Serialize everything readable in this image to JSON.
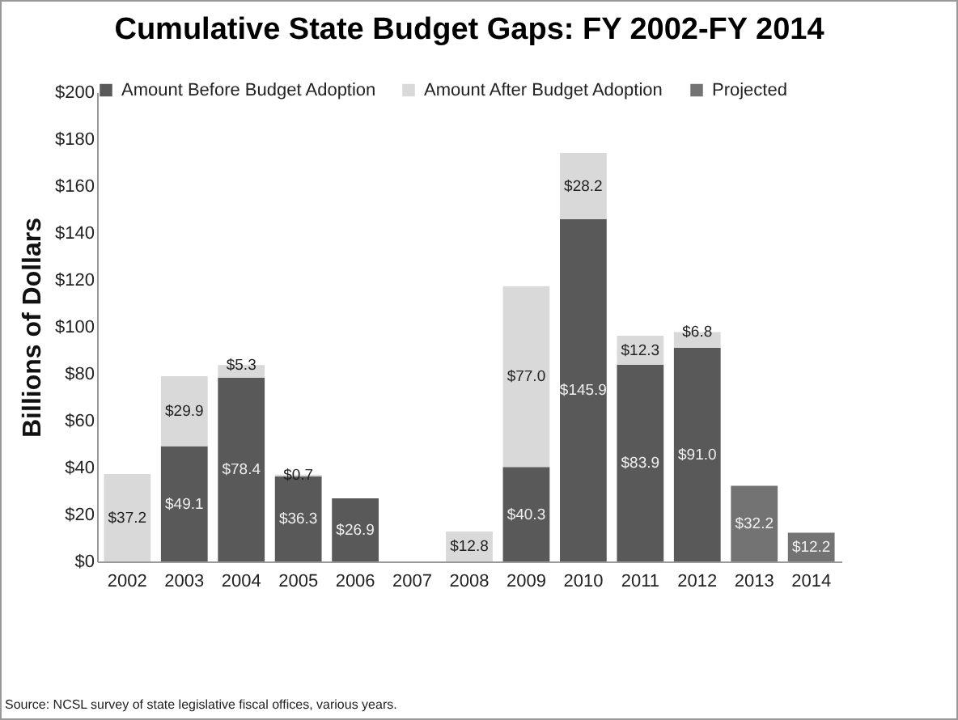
{
  "chart_data": {
    "type": "bar",
    "title": "Cumulative State Budget Gaps: FY 2002-FY 2014",
    "ylabel": "Billions of Dollars",
    "categories": [
      "2002",
      "2003",
      "2004",
      "2005",
      "2006",
      "2007",
      "2008",
      "2009",
      "2010",
      "2011",
      "2012",
      "2013",
      "2014"
    ],
    "stacked": true,
    "series": [
      {
        "name": "Amount Before Budget Adoption",
        "color": "#595959",
        "values": [
          null,
          49.1,
          78.4,
          36.3,
          26.9,
          null,
          null,
          40.3,
          145.9,
          83.9,
          91.0,
          null,
          null
        ],
        "value_labels": [
          null,
          "$49.1",
          "$78.4",
          "$36.3",
          "$26.9",
          null,
          null,
          "$40.3",
          "$145.9",
          "$83.9",
          "$91.0",
          null,
          null
        ]
      },
      {
        "name": "Amount After Budget Adoption",
        "color": "#d9d9d9",
        "values": [
          37.2,
          29.9,
          5.3,
          0.7,
          null,
          null,
          12.8,
          77.0,
          28.2,
          12.3,
          6.8,
          null,
          null
        ],
        "value_labels": [
          "$37.2",
          "$29.9",
          "$5.3",
          "$0.7",
          null,
          null,
          "$12.8",
          "$77.0",
          "$28.2",
          "$12.3",
          "$6.8",
          null,
          null
        ]
      },
      {
        "name": "Projected",
        "color": "#737373",
        "values": [
          null,
          null,
          null,
          null,
          null,
          null,
          null,
          null,
          null,
          null,
          null,
          32.2,
          12.2
        ],
        "value_labels": [
          null,
          null,
          null,
          null,
          null,
          null,
          null,
          null,
          null,
          null,
          null,
          "$32.2",
          "$12.2"
        ]
      }
    ],
    "ylim": [
      0,
      200
    ],
    "yticks": [
      {
        "value": 0,
        "label": "$0"
      },
      {
        "value": 20,
        "label": "$20"
      },
      {
        "value": 40,
        "label": "$40"
      },
      {
        "value": 60,
        "label": "$60"
      },
      {
        "value": 80,
        "label": "$80"
      },
      {
        "value": 100,
        "label": "$100"
      },
      {
        "value": 120,
        "label": "$120"
      },
      {
        "value": 140,
        "label": "$140"
      },
      {
        "value": 160,
        "label": "$160"
      },
      {
        "value": 180,
        "label": "$180"
      },
      {
        "value": 200,
        "label": "$200"
      }
    ],
    "grid": false,
    "legend": "top",
    "annotations": [
      "Source: NCSL survey of state legislative fiscal offices, various years."
    ]
  }
}
